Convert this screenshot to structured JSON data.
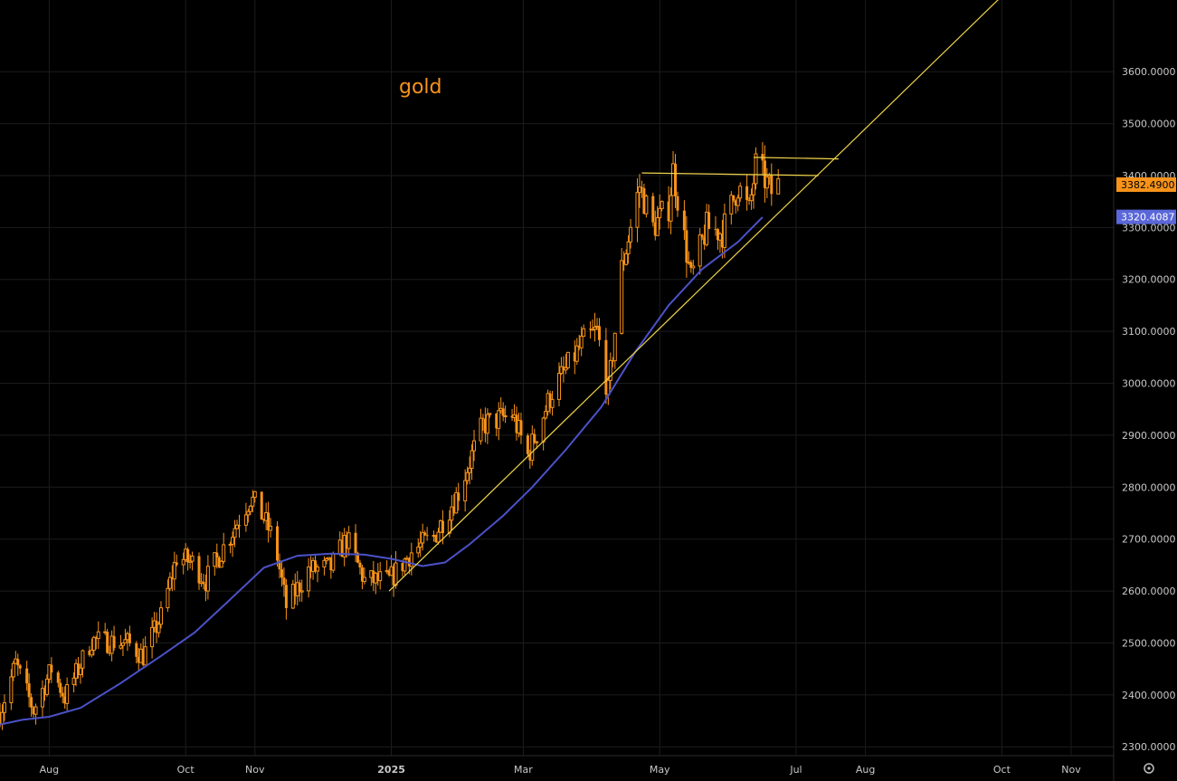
{
  "chart_data": {
    "type": "candlestick",
    "title": "gold",
    "y_axis": {
      "ticks": [
        "2300.0000",
        "2400.0000",
        "2500.0000",
        "2600.0000",
        "2700.0000",
        "2800.0000",
        "2900.0000",
        "3000.0000",
        "3100.0000",
        "3200.0000",
        "3300.0000",
        "3400.0000",
        "3500.0000",
        "3600.0000"
      ],
      "tick_values": [
        2300,
        2400,
        2500,
        2600,
        2700,
        2800,
        2900,
        3000,
        3100,
        3200,
        3300,
        3400,
        3500,
        3600
      ],
      "range": [
        2283,
        3738
      ],
      "position": "right"
    },
    "x_axis": {
      "labels": [
        "Aug",
        "Oct",
        "Nov",
        "2025",
        "Mar",
        "May",
        "Jul",
        "Aug",
        "Oct",
        "Nov"
      ],
      "label_dates": [
        "2024-08-01",
        "2024-10-01",
        "2024-11-01",
        "2025-01-01",
        "2025-03-01",
        "2025-05-01",
        "2025-07-01",
        "2025-08-01",
        "2025-10-01",
        "2025-11-01"
      ],
      "major_labels": [
        "2025"
      ],
      "range": [
        "2024-07-10",
        "2025-11-20"
      ]
    },
    "price_badge": {
      "label": "3382.4900",
      "value": 3382.49,
      "color": "#f7931a"
    },
    "ma_badge": {
      "label": "3320.4087",
      "value": 3320.4087,
      "color": "#5a67d8"
    },
    "series": [
      {
        "kind": "moving_average",
        "color": "#4b52c8",
        "points": [
          [
            "2024-07-10",
            2343
          ],
          [
            "2024-07-20",
            2352
          ],
          [
            "2024-08-01",
            2358
          ],
          [
            "2024-08-15",
            2375
          ],
          [
            "2024-09-01",
            2420
          ],
          [
            "2024-09-20",
            2475
          ],
          [
            "2024-10-05",
            2520
          ],
          [
            "2024-10-20",
            2580
          ],
          [
            "2024-11-05",
            2645
          ],
          [
            "2024-11-20",
            2668
          ],
          [
            "2024-12-05",
            2672
          ],
          [
            "2024-12-20",
            2670
          ],
          [
            "2025-01-01",
            2662
          ],
          [
            "2025-01-15",
            2648
          ],
          [
            "2025-01-25",
            2655
          ],
          [
            "2025-02-05",
            2690
          ],
          [
            "2025-02-20",
            2745
          ],
          [
            "2025-03-05",
            2800
          ],
          [
            "2025-03-20",
            2872
          ],
          [
            "2025-04-05",
            2955
          ],
          [
            "2025-04-20",
            3060
          ],
          [
            "2025-05-05",
            3150
          ],
          [
            "2025-05-20",
            3220
          ],
          [
            "2025-06-05",
            3272
          ],
          [
            "2025-06-16",
            3320
          ]
        ]
      },
      {
        "kind": "candles",
        "color": "#f7931a",
        "anchors": [
          [
            "2024-07-10",
            2365
          ],
          [
            "2024-07-17",
            2460
          ],
          [
            "2024-07-25",
            2370
          ],
          [
            "2024-08-02",
            2450
          ],
          [
            "2024-08-08",
            2395
          ],
          [
            "2024-08-20",
            2505
          ],
          [
            "2024-09-05",
            2500
          ],
          [
            "2024-09-12",
            2475
          ],
          [
            "2024-09-20",
            2550
          ],
          [
            "2024-09-27",
            2665
          ],
          [
            "2024-10-04",
            2655
          ],
          [
            "2024-10-10",
            2620
          ],
          [
            "2024-10-20",
            2700
          ],
          [
            "2024-10-30",
            2780
          ],
          [
            "2024-11-05",
            2740
          ],
          [
            "2024-11-10",
            2690
          ],
          [
            "2024-11-15",
            2570
          ],
          [
            "2024-11-25",
            2640
          ],
          [
            "2024-12-05",
            2645
          ],
          [
            "2024-12-12",
            2700
          ],
          [
            "2024-12-20",
            2620
          ],
          [
            "2024-12-31",
            2620
          ],
          [
            "2025-01-10",
            2675
          ],
          [
            "2025-01-20",
            2705
          ],
          [
            "2025-01-31",
            2790
          ],
          [
            "2025-02-11",
            2920
          ],
          [
            "2025-02-24",
            2940
          ],
          [
            "2025-03-03",
            2860
          ],
          [
            "2025-03-14",
            2985
          ],
          [
            "2025-03-28",
            3080
          ],
          [
            "2025-04-03",
            3100
          ],
          [
            "2025-04-08",
            2980
          ],
          [
            "2025-04-14",
            3220
          ],
          [
            "2025-04-22",
            3380
          ],
          [
            "2025-04-28",
            3300
          ],
          [
            "2025-05-05",
            3340
          ],
          [
            "2025-05-07",
            3410
          ],
          [
            "2025-05-15",
            3200
          ],
          [
            "2025-05-22",
            3300
          ],
          [
            "2025-05-29",
            3290
          ],
          [
            "2025-06-05",
            3380
          ],
          [
            "2025-06-10",
            3330
          ],
          [
            "2025-06-13",
            3420
          ],
          [
            "2025-06-16",
            3400
          ],
          [
            "2025-06-20",
            3368
          ],
          [
            "2025-06-23",
            3382
          ]
        ]
      }
    ],
    "drawings": [
      {
        "kind": "trendline",
        "color": "#f0d44a",
        "from": [
          "2024-12-31",
          2600
        ],
        "to": [
          "2025-10-26",
          3850
        ]
      },
      {
        "kind": "horizontal",
        "color": "#f0d44a",
        "from": [
          "2025-04-23",
          3405
        ],
        "to": [
          "2025-07-11",
          3400
        ]
      },
      {
        "kind": "horizontal",
        "color": "#f0d44a",
        "from": [
          "2025-06-12",
          3435
        ],
        "to": [
          "2025-07-20",
          3432
        ]
      }
    ]
  },
  "settings_icon": "settings-gear-icon"
}
